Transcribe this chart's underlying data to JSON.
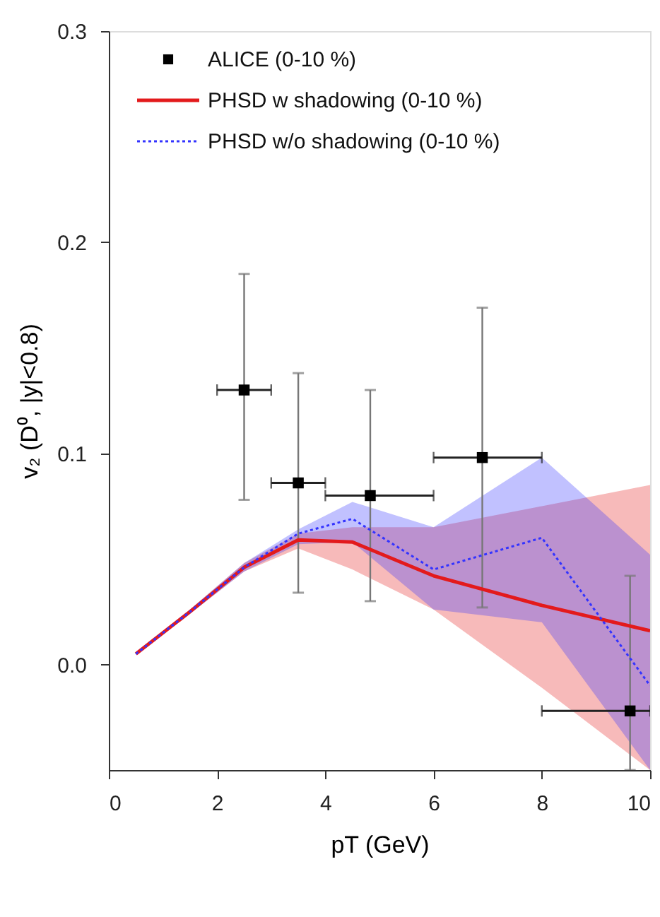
{
  "chart_data": {
    "type": "line",
    "xlabel": "pT (GeV)",
    "ylabel": "v₂ (D⁰, |y|<0.8)",
    "xlim": [
      0,
      10
    ],
    "xticks": [
      0,
      2,
      4,
      6,
      8,
      10
    ],
    "ylim": [
      -0.05,
      0.3
    ],
    "yticks": [
      {
        "value": 0,
        "label": "0.0"
      },
      {
        "value": 0.1,
        "label": "0.1"
      },
      {
        "value": 0.2,
        "label": "0.2"
      },
      {
        "value": 0.3,
        "label": "0.3"
      }
    ],
    "grid": false,
    "legend": "top left",
    "series": [
      {
        "name": "ALICE (0-10 %)",
        "type": "scatter",
        "marker": "square",
        "color": "#000000",
        "x": [
          2.5,
          3.5,
          4.83,
          6.9,
          9.63
        ],
        "values": [
          0.13,
          0.086,
          0.08,
          0.098,
          -0.022
        ],
        "errors": [
          [
            0.078,
            0.185
          ],
          [
            0.034,
            0.138
          ],
          [
            0.03,
            0.13
          ],
          [
            0.027,
            0.169
          ],
          [
            -0.05,
            0.042
          ]
        ],
        "xerrors": [
          0.5,
          0.5,
          [
            4.0,
            6.0
          ],
          [
            6.0,
            8.0
          ],
          [
            8.0,
            10.0
          ]
        ]
      },
      {
        "name": "PHSD w shadowing (0-10 %)",
        "line_style": "solid",
        "color": "#e31a1c",
        "x": [
          0.5,
          1.5,
          2.5,
          3.5,
          4.5,
          6,
          8,
          10
        ],
        "values": [
          0.005,
          0.025,
          0.046,
          0.059,
          0.058,
          0.042,
          0.028,
          0.016
        ],
        "lower": [
          0.005,
          0.024,
          0.044,
          0.055,
          0.045,
          0.026,
          -0.011,
          -0.05
        ],
        "upper": [
          0.006,
          0.026,
          0.048,
          0.062,
          0.065,
          0.065,
          0.075,
          0.085
        ]
      },
      {
        "name": "PHSD w/o shadowing (0-10 %)",
        "line_style": "dotted",
        "color": "#3333ff",
        "x": [
          0.5,
          1.5,
          2.5,
          3.5,
          4.5,
          6,
          8,
          10
        ],
        "values": [
          0.005,
          0.025,
          0.046,
          0.062,
          0.069,
          0.045,
          0.06,
          -0.01
        ],
        "lower": [
          0.005,
          0.024,
          0.044,
          0.057,
          0.058,
          0.026,
          0.02,
          -0.05
        ],
        "upper": [
          0.006,
          0.026,
          0.048,
          0.064,
          0.077,
          0.065,
          0.098,
          0.052
        ]
      }
    ]
  }
}
